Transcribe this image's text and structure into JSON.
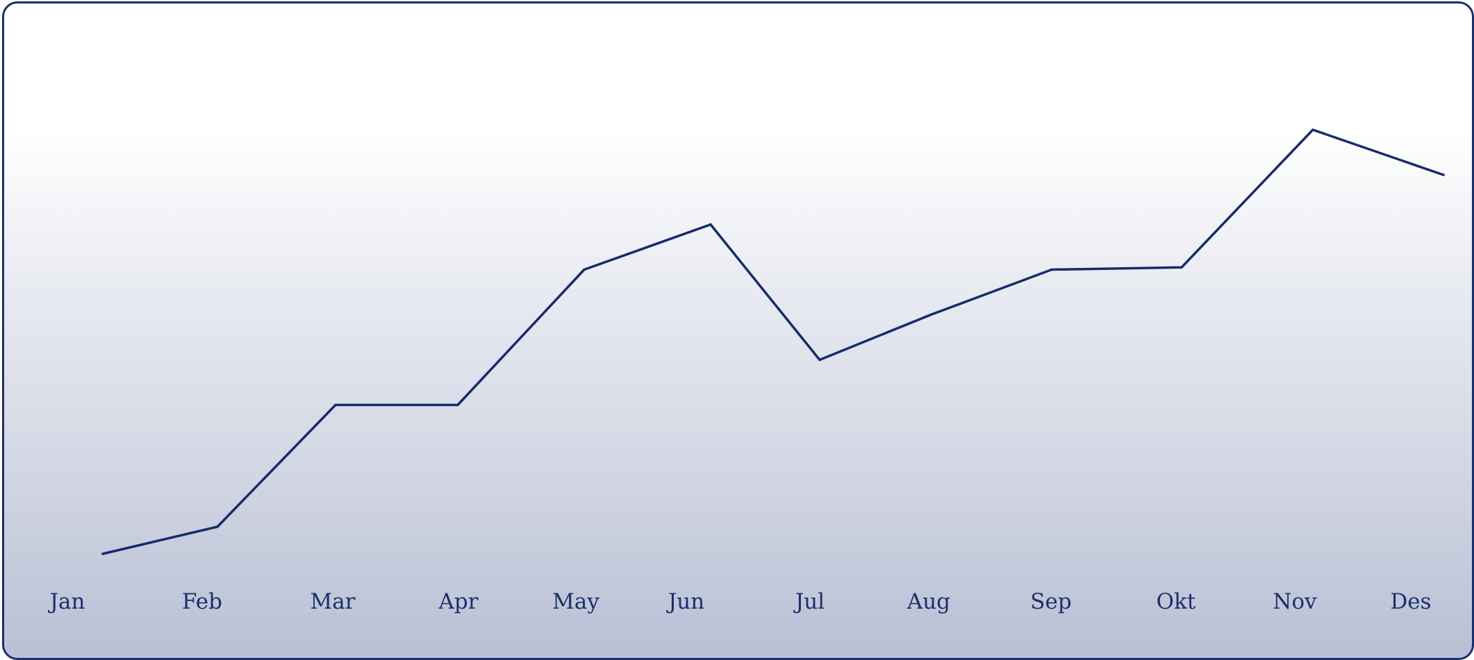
{
  "chart_data": {
    "type": "line",
    "title": "",
    "xlabel": "",
    "ylabel": "",
    "categories": [
      "Jan",
      "Feb",
      "Mar",
      "Apr",
      "May",
      "Jun",
      "Jul",
      "Aug",
      "Sep",
      "Okt",
      "Nov",
      "Des"
    ],
    "series": [
      {
        "values": [
          0,
          6,
          33,
          33,
          63,
          73,
          43,
          53,
          63,
          63.5,
          94,
          84
        ]
      }
    ],
    "ylim": [
      0,
      100
    ],
    "grid": false,
    "legend": "none",
    "colors": {
      "line": "#152c6a",
      "text": "#1b2f6b",
      "frame": "#1b2f6b"
    }
  }
}
